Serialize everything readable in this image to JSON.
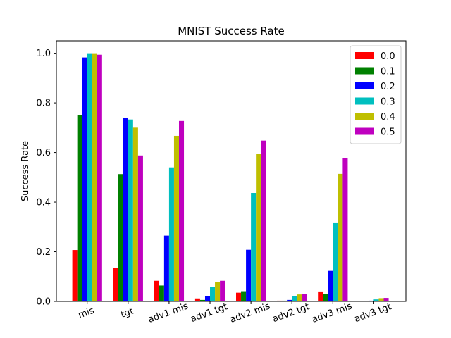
{
  "chart_data": {
    "type": "bar",
    "title": "MNIST Success Rate",
    "xlabel": "",
    "ylabel": "Success Rate",
    "ylim": [
      0,
      1.05
    ],
    "yticks": [
      0.0,
      0.2,
      0.4,
      0.6,
      0.8,
      1.0
    ],
    "grid": false,
    "legend_position": "top-right",
    "categories": [
      "mis",
      "tgt",
      "adv1 mis",
      "adv1 tgt",
      "adv2 mis",
      "adv2 tgt",
      "adv3 mis",
      "adv3 tgt"
    ],
    "series": [
      {
        "name": "0.0",
        "color": "#ff0000",
        "values": [
          0.207,
          0.134,
          0.083,
          0.012,
          0.035,
          0.003,
          0.04,
          0.002
        ]
      },
      {
        "name": "0.1",
        "color": "#008000",
        "values": [
          0.75,
          0.513,
          0.064,
          0.006,
          0.041,
          0.003,
          0.03,
          0.001
        ]
      },
      {
        "name": "0.2",
        "color": "#0000ff",
        "values": [
          0.983,
          0.74,
          0.265,
          0.02,
          0.208,
          0.006,
          0.123,
          0.003
        ]
      },
      {
        "name": "0.3",
        "color": "#00bfbf",
        "values": [
          1.0,
          0.733,
          0.54,
          0.058,
          0.437,
          0.02,
          0.318,
          0.008
        ]
      },
      {
        "name": "0.4",
        "color": "#bfbf00",
        "values": [
          1.0,
          0.7,
          0.667,
          0.077,
          0.594,
          0.028,
          0.514,
          0.013
        ]
      },
      {
        "name": "0.5",
        "color": "#bf00bf",
        "values": [
          0.994,
          0.588,
          0.727,
          0.083,
          0.648,
          0.031,
          0.577,
          0.014
        ]
      }
    ]
  }
}
